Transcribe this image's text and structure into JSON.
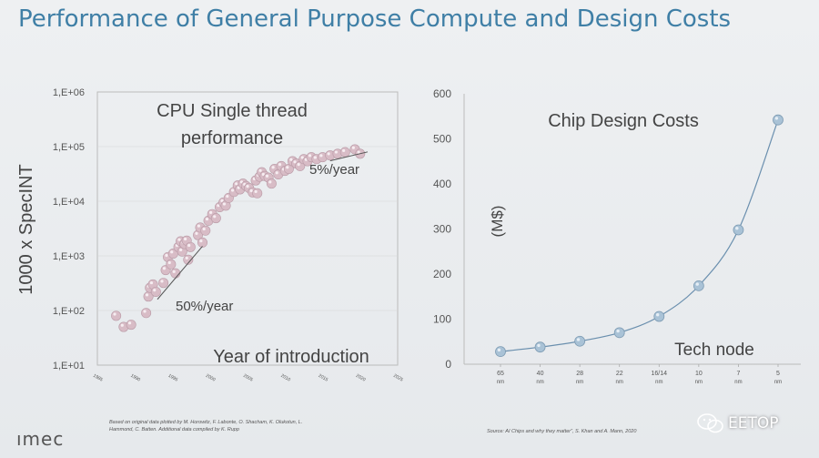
{
  "title": "Performance of General Purpose Compute and Design Costs",
  "footer": {
    "logo": "ımec",
    "left_note": "Based on original data plotted by M. Horowitz, F. Labonte, O. Shacham, K. Olukotun, L. Hammond, C. Batten. Additional data compiled by K. Rupp",
    "right_note": "Source: AI Chips and why they matter”, S. Khan and A. Mann, 2020",
    "watermark": "EETOP"
  },
  "chart_data": [
    {
      "type": "scatter",
      "title": "CPU Single thread performance",
      "title_lines": [
        "CPU Single thread",
        "performance"
      ],
      "xlabel": "Year of introduction",
      "ylabel": "1000 x SpecINT",
      "log_y": true,
      "xlim": [
        1985,
        2025
      ],
      "ylim": [
        10,
        1000000
      ],
      "xticks": [
        "1985",
        "1990",
        "1995",
        "2000",
        "2005",
        "2010",
        "2015",
        "2020",
        "2025"
      ],
      "ytick_values": [
        10,
        100,
        1000,
        10000,
        100000,
        1000000
      ],
      "yticks": [
        "1,E+01",
        "1,E+02",
        "1,E+03",
        "1,E+04",
        "1,E+05",
        "1,E+06"
      ],
      "color": "#d8bcc6",
      "annotations": [
        {
          "text": "50%/year",
          "line": [
            [
              1993,
              160
            ],
            [
              1999,
              1500
            ]
          ]
        },
        {
          "text": "5%/year",
          "line": [
            [
              2016,
              55000
            ],
            [
              2021,
              80000
            ]
          ]
        }
      ],
      "points": [
        [
          1987.5,
          80
        ],
        [
          1988.5,
          50
        ],
        [
          1989.5,
          55
        ],
        [
          1991.5,
          90
        ],
        [
          1991.8,
          180
        ],
        [
          1992,
          260
        ],
        [
          1992.4,
          300
        ],
        [
          1992.8,
          220
        ],
        [
          1993.8,
          320
        ],
        [
          1994.1,
          550
        ],
        [
          1994.4,
          950
        ],
        [
          1994.8,
          700
        ],
        [
          1995.1,
          1100
        ],
        [
          1995.4,
          480
        ],
        [
          1995.8,
          1450
        ],
        [
          1996.1,
          1850
        ],
        [
          1996.3,
          1200
        ],
        [
          1996.6,
          1650
        ],
        [
          1996.9,
          1900
        ],
        [
          1997.1,
          850
        ],
        [
          1997.4,
          1450
        ],
        [
          1998.4,
          2400
        ],
        [
          1998.7,
          3300
        ],
        [
          1999,
          1750
        ],
        [
          1999.4,
          2900
        ],
        [
          1999.8,
          4400
        ],
        [
          2000.3,
          5800
        ],
        [
          2000.8,
          4900
        ],
        [
          2001.3,
          7800
        ],
        [
          2001.8,
          9500
        ],
        [
          2002.1,
          8300
        ],
        [
          2002.5,
          11500
        ],
        [
          2003.2,
          14800
        ],
        [
          2003.7,
          19500
        ],
        [
          2004,
          16500
        ],
        [
          2004.4,
          21000
        ],
        [
          2004.8,
          19000
        ],
        [
          2005.2,
          17500
        ],
        [
          2005.7,
          14500
        ],
        [
          2006.1,
          24000
        ],
        [
          2006.6,
          28000
        ],
        [
          2006.9,
          34000
        ],
        [
          2007.3,
          29000
        ],
        [
          2007.8,
          27000
        ],
        [
          2008.2,
          21000
        ],
        [
          2008.6,
          39000
        ],
        [
          2009.1,
          31000
        ],
        [
          2009.5,
          44000
        ],
        [
          2010,
          36000
        ],
        [
          2010.5,
          39000
        ],
        [
          2011,
          54000
        ],
        [
          2011.5,
          49000
        ],
        [
          2012,
          44000
        ],
        [
          2012.5,
          59000
        ],
        [
          2013,
          54000
        ],
        [
          2013.5,
          64000
        ],
        [
          2014.2,
          59000
        ],
        [
          2015,
          64000
        ],
        [
          2016,
          69000
        ],
        [
          2017,
          74000
        ],
        [
          2018,
          79000
        ],
        [
          2019.3,
          89000
        ],
        [
          2020,
          74000
        ],
        [
          2006.3,
          14000
        ]
      ]
    },
    {
      "type": "line",
      "title": "Chip Design Costs",
      "ylabel": "(M$)",
      "xlabel": "Tech node",
      "ylim": [
        0,
        600
      ],
      "yticks": [
        "0",
        "100",
        "200",
        "300",
        "400",
        "500",
        "600"
      ],
      "categories": [
        [
          "65",
          "nm"
        ],
        [
          "40",
          "nm"
        ],
        [
          "28",
          "nm"
        ],
        [
          "22",
          "nm"
        ],
        [
          "16/14",
          "nm"
        ],
        [
          "10",
          "nm"
        ],
        [
          "7",
          "nm"
        ],
        [
          "5",
          "nm"
        ]
      ],
      "values": [
        28,
        38,
        51,
        70,
        106,
        174,
        298,
        542
      ],
      "color": "#6a9cc0"
    }
  ]
}
